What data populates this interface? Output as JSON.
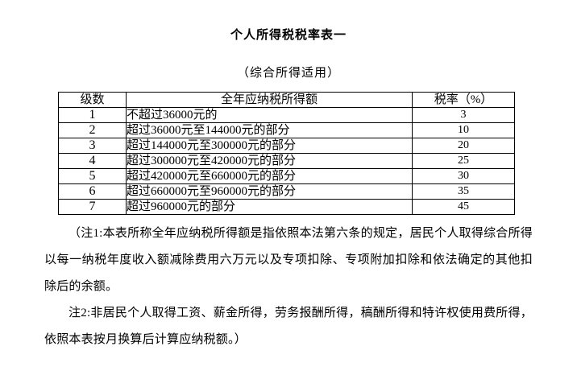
{
  "doc": {
    "title": "个人所得税税率表一",
    "subtitle": "（综合所得适用）"
  },
  "table": {
    "headers": {
      "level": "级数",
      "income": "全年应纳税所得额",
      "rate": "税率（%）"
    },
    "rows": [
      {
        "level": "1",
        "income": "不超过36000元的",
        "rate": "3"
      },
      {
        "level": "2",
        "income": "超过36000元至144000元的部分",
        "rate": "10"
      },
      {
        "level": "3",
        "income": "超过144000元至300000元的部分",
        "rate": "20"
      },
      {
        "level": "4",
        "income": "超过300000元至420000元的部分",
        "rate": "25"
      },
      {
        "level": "5",
        "income": "超过420000元至660000元的部分",
        "rate": "30"
      },
      {
        "level": "6",
        "income": "超过660000元至960000元的部分",
        "rate": "35"
      },
      {
        "level": "7",
        "income": "超过960000元的部分",
        "rate": "45"
      }
    ]
  },
  "notes": [
    "（注1:本表所称全年应纳税所得额是指依照本法第六条的规定，居民个人取得综合所得以每一纳税年度收入额减除费用六万元以及专项扣除、专项附加扣除和依法确定的其他扣除后的余额。",
    "注2:非居民个人取得工资、薪金所得，劳务报酬所得，稿酬所得和特许权使用费所得，依照本表按月换算后计算应纳税额。）"
  ]
}
